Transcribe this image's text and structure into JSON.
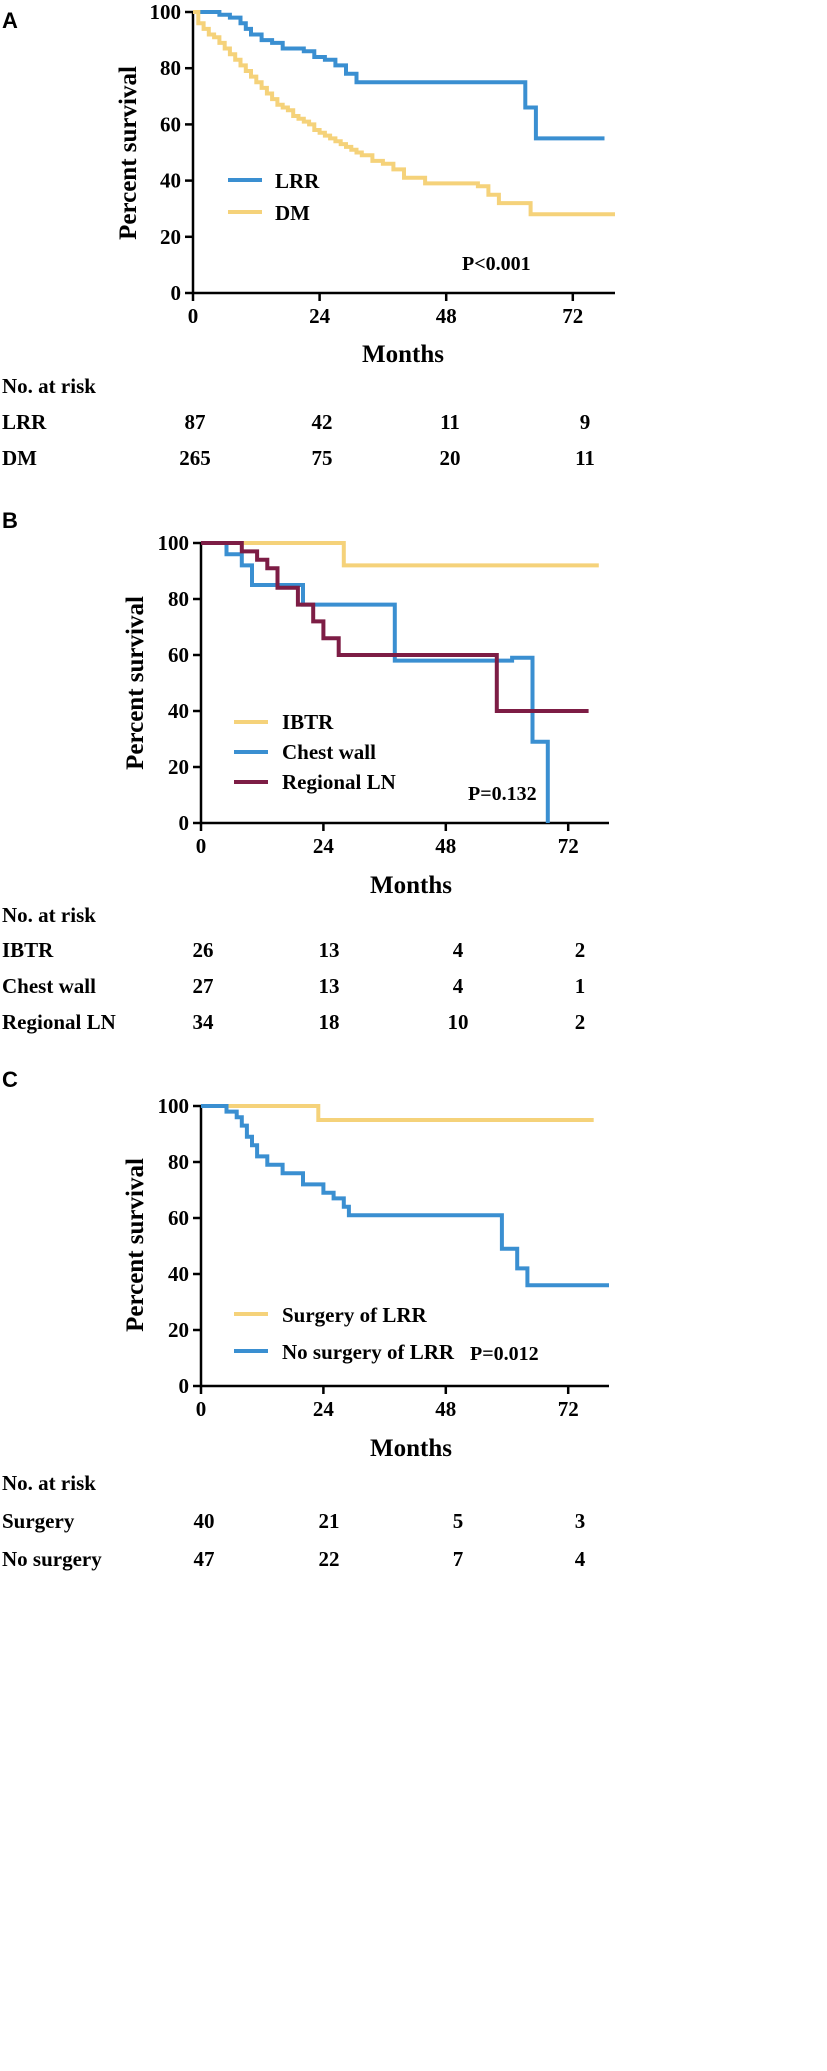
{
  "chart_data": [
    {
      "type": "line",
      "panel_label": "A",
      "ylabel": "Percent survival",
      "xlabel": "Months",
      "xlim": [
        0,
        80
      ],
      "ylim": [
        0,
        100
      ],
      "xticks": [
        0,
        24,
        48,
        72
      ],
      "yticks": [
        0,
        20,
        40,
        60,
        80,
        100
      ],
      "p_value": "P<0.001",
      "legend_placement": "center-left",
      "series": [
        {
          "name": "LRR",
          "color": "#3a8fd1",
          "x": [
            0,
            5,
            7,
            9,
            10,
            11,
            13,
            15,
            17,
            21,
            23,
            25,
            27,
            29,
            31,
            61,
            63,
            65,
            78
          ],
          "y": [
            100,
            99,
            98,
            96,
            94,
            92,
            90,
            89,
            87,
            86,
            84,
            83,
            81,
            78,
            75,
            75,
            66,
            55,
            55
          ]
        },
        {
          "name": "DM",
          "color": "#f5d27a",
          "x": [
            0,
            1,
            2,
            3,
            4,
            5,
            6,
            7,
            8,
            9,
            10,
            11,
            12,
            13,
            14,
            15,
            16,
            17,
            18,
            19,
            20,
            21,
            22,
            23,
            24,
            25,
            26,
            27,
            28,
            29,
            30,
            31,
            32,
            34,
            36,
            38,
            40,
            44,
            48,
            54,
            56,
            58,
            60,
            64,
            80
          ],
          "y": [
            100,
            96,
            94,
            92,
            91,
            89,
            87,
            85,
            83,
            81,
            79,
            77,
            75,
            73,
            71,
            69,
            67,
            66,
            65,
            63,
            62,
            61,
            60,
            58,
            57,
            56,
            55,
            54,
            53,
            52,
            51,
            50,
            49,
            47,
            46,
            44,
            41,
            39,
            39,
            38,
            35,
            32,
            32,
            28,
            28
          ]
        }
      ],
      "risk_table": {
        "header": "No. at risk",
        "rows": [
          {
            "label": "LRR",
            "values": [
              "87",
              "42",
              "11",
              "9"
            ]
          },
          {
            "label": "DM",
            "values": [
              "265",
              "75",
              "20",
              "11"
            ]
          }
        ]
      }
    },
    {
      "type": "line",
      "panel_label": "B",
      "ylabel": "Percent survival",
      "xlabel": "Months",
      "xlim": [
        0,
        80
      ],
      "ylim": [
        0,
        100
      ],
      "xticks": [
        0,
        24,
        48,
        72
      ],
      "yticks": [
        0,
        20,
        40,
        60,
        80,
        100
      ],
      "p_value": "P=0.132",
      "legend_placement": "bottom-left",
      "series": [
        {
          "name": "IBTR",
          "color": "#f5d27a",
          "x": [
            0,
            28,
            28,
            78
          ],
          "y": [
            100,
            100,
            92,
            92
          ]
        },
        {
          "name": "Chest wall",
          "color": "#3a8fd1",
          "x": [
            0,
            5,
            5,
            8,
            8,
            10,
            10,
            20,
            20,
            38,
            38,
            61,
            61,
            65,
            65,
            68,
            68
          ],
          "y": [
            100,
            100,
            96,
            96,
            92,
            92,
            85,
            85,
            78,
            78,
            58,
            58,
            59,
            59,
            29,
            29,
            0
          ]
        },
        {
          "name": "Regional LN",
          "color": "#7d1d45",
          "x": [
            0,
            8,
            8,
            11,
            11,
            13,
            13,
            15,
            15,
            19,
            19,
            22,
            22,
            24,
            24,
            27,
            27,
            58,
            58,
            76
          ],
          "y": [
            100,
            100,
            97,
            97,
            94,
            94,
            91,
            91,
            84,
            84,
            78,
            78,
            72,
            72,
            66,
            66,
            60,
            60,
            40,
            40
          ]
        }
      ],
      "risk_table": {
        "header": "No. at risk",
        "rows": [
          {
            "label": "IBTR",
            "values": [
              "26",
              "13",
              "4",
              "2"
            ]
          },
          {
            "label": "Chest wall",
            "values": [
              "27",
              "13",
              "4",
              "1"
            ]
          },
          {
            "label": "Regional LN",
            "values": [
              "34",
              "18",
              "10",
              "2"
            ]
          }
        ]
      }
    },
    {
      "type": "line",
      "panel_label": "C",
      "ylabel": "Percent survival",
      "xlabel": "Months",
      "xlim": [
        0,
        80
      ],
      "ylim": [
        0,
        100
      ],
      "xticks": [
        0,
        24,
        48,
        72
      ],
      "yticks": [
        0,
        20,
        40,
        60,
        80,
        100
      ],
      "p_value": "P=0.012",
      "legend_placement": "bottom-left",
      "series": [
        {
          "name": "Surgery of LRR",
          "color": "#f5d27a",
          "x": [
            0,
            23,
            23,
            77
          ],
          "y": [
            100,
            100,
            95,
            95
          ]
        },
        {
          "name": "No surgery of LRR",
          "color": "#3a8fd1",
          "x": [
            0,
            5,
            5,
            7,
            7,
            8,
            8,
            9,
            9,
            10,
            10,
            11,
            11,
            13,
            13,
            16,
            16,
            20,
            20,
            24,
            24,
            26,
            26,
            28,
            28,
            29,
            29,
            59,
            59,
            62,
            62,
            64,
            64,
            80
          ],
          "y": [
            100,
            100,
            98,
            98,
            96,
            96,
            93,
            93,
            89,
            89,
            86,
            86,
            82,
            82,
            79,
            79,
            76,
            76,
            72,
            72,
            69,
            69,
            67,
            67,
            64,
            64,
            61,
            61,
            49,
            49,
            42,
            42,
            36,
            36
          ]
        }
      ],
      "risk_table": {
        "header": "No. at risk",
        "rows": [
          {
            "label": "Surgery",
            "values": [
              "40",
              "21",
              "5",
              "3"
            ]
          },
          {
            "label": "No surgery",
            "values": [
              "47",
              "22",
              "7",
              "4"
            ]
          }
        ]
      }
    }
  ]
}
